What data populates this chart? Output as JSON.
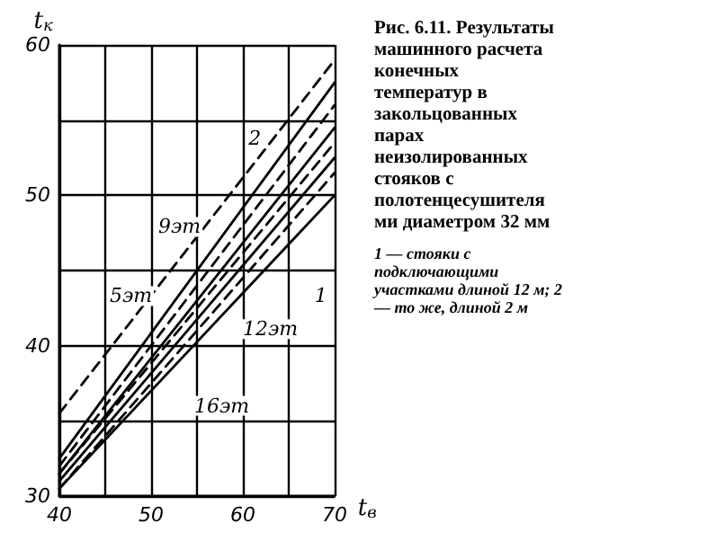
{
  "chart_data": {
    "type": "line",
    "title": "Рис. 6.11. Результаты машинного расчета конечных температур в закольцованных парах неизолированных стояков с полотенцесушителями диаметром 32 мм",
    "xlabel": "t$_{в}$",
    "ylabel": "t$_{к}$",
    "xlim": [
      40,
      70
    ],
    "xticks": [
      40,
      {
        "value": 45,
        "label": null
      },
      50,
      {
        "value": 55,
        "label": null
      },
      60,
      {
        "value": 65,
        "label": null
      },
      70
    ],
    "ylim": [
      30,
      60
    ],
    "yticks": [
      30,
      {
        "value": 35,
        "label": null
      },
      40,
      {
        "value": 45,
        "label": null
      },
      50,
      {
        "value": 55,
        "label": null
      },
      60
    ],
    "grid": true,
    "marker": "none",
    "x": [
      40,
      70
    ],
    "series": [
      {
        "color": "#000000",
        "line_style": "dashed",
        "values": [
          35.5,
          59
        ]
      },
      {
        "color": "#000000",
        "line_style": "solid",
        "values": [
          32.5,
          57.5
        ]
      },
      {
        "color": "#000000",
        "line_style": "dashed",
        "values": [
          32,
          56
        ]
      },
      {
        "color": "#000000",
        "line_style": "solid",
        "values": [
          31.5,
          54.5
        ]
      },
      {
        "color": "#000000",
        "line_style": "dashed",
        "values": [
          31.5,
          53.5
        ]
      },
      {
        "color": "#000000",
        "line_style": "solid",
        "values": [
          31,
          52.5
        ]
      },
      {
        "color": "#000000",
        "line_style": "dashed",
        "values": [
          30.5,
          51.5
        ]
      },
      {
        "color": "#000000",
        "line_style": "solid",
        "values": [
          30.5,
          50
        ]
      }
    ],
    "annotations": [
      {
        "text": "5эт",
        "x": 47.8,
        "y": 43.3
      },
      {
        "text": "9эт",
        "x": 53.1,
        "y": 47.9
      },
      {
        "text": "12эт",
        "x": 63,
        "y": 41.1
      },
      {
        "text": "16эт",
        "x": 57.7,
        "y": 36
      },
      {
        "text": "1",
        "x": 68.5,
        "y": 43.3
      },
      {
        "text": "2",
        "x": 61.3,
        "y": 53.8
      },
      "1 — стояки с подключающими участками длиной 12 м; 2 — то же, длиной 2 м"
    ]
  }
}
